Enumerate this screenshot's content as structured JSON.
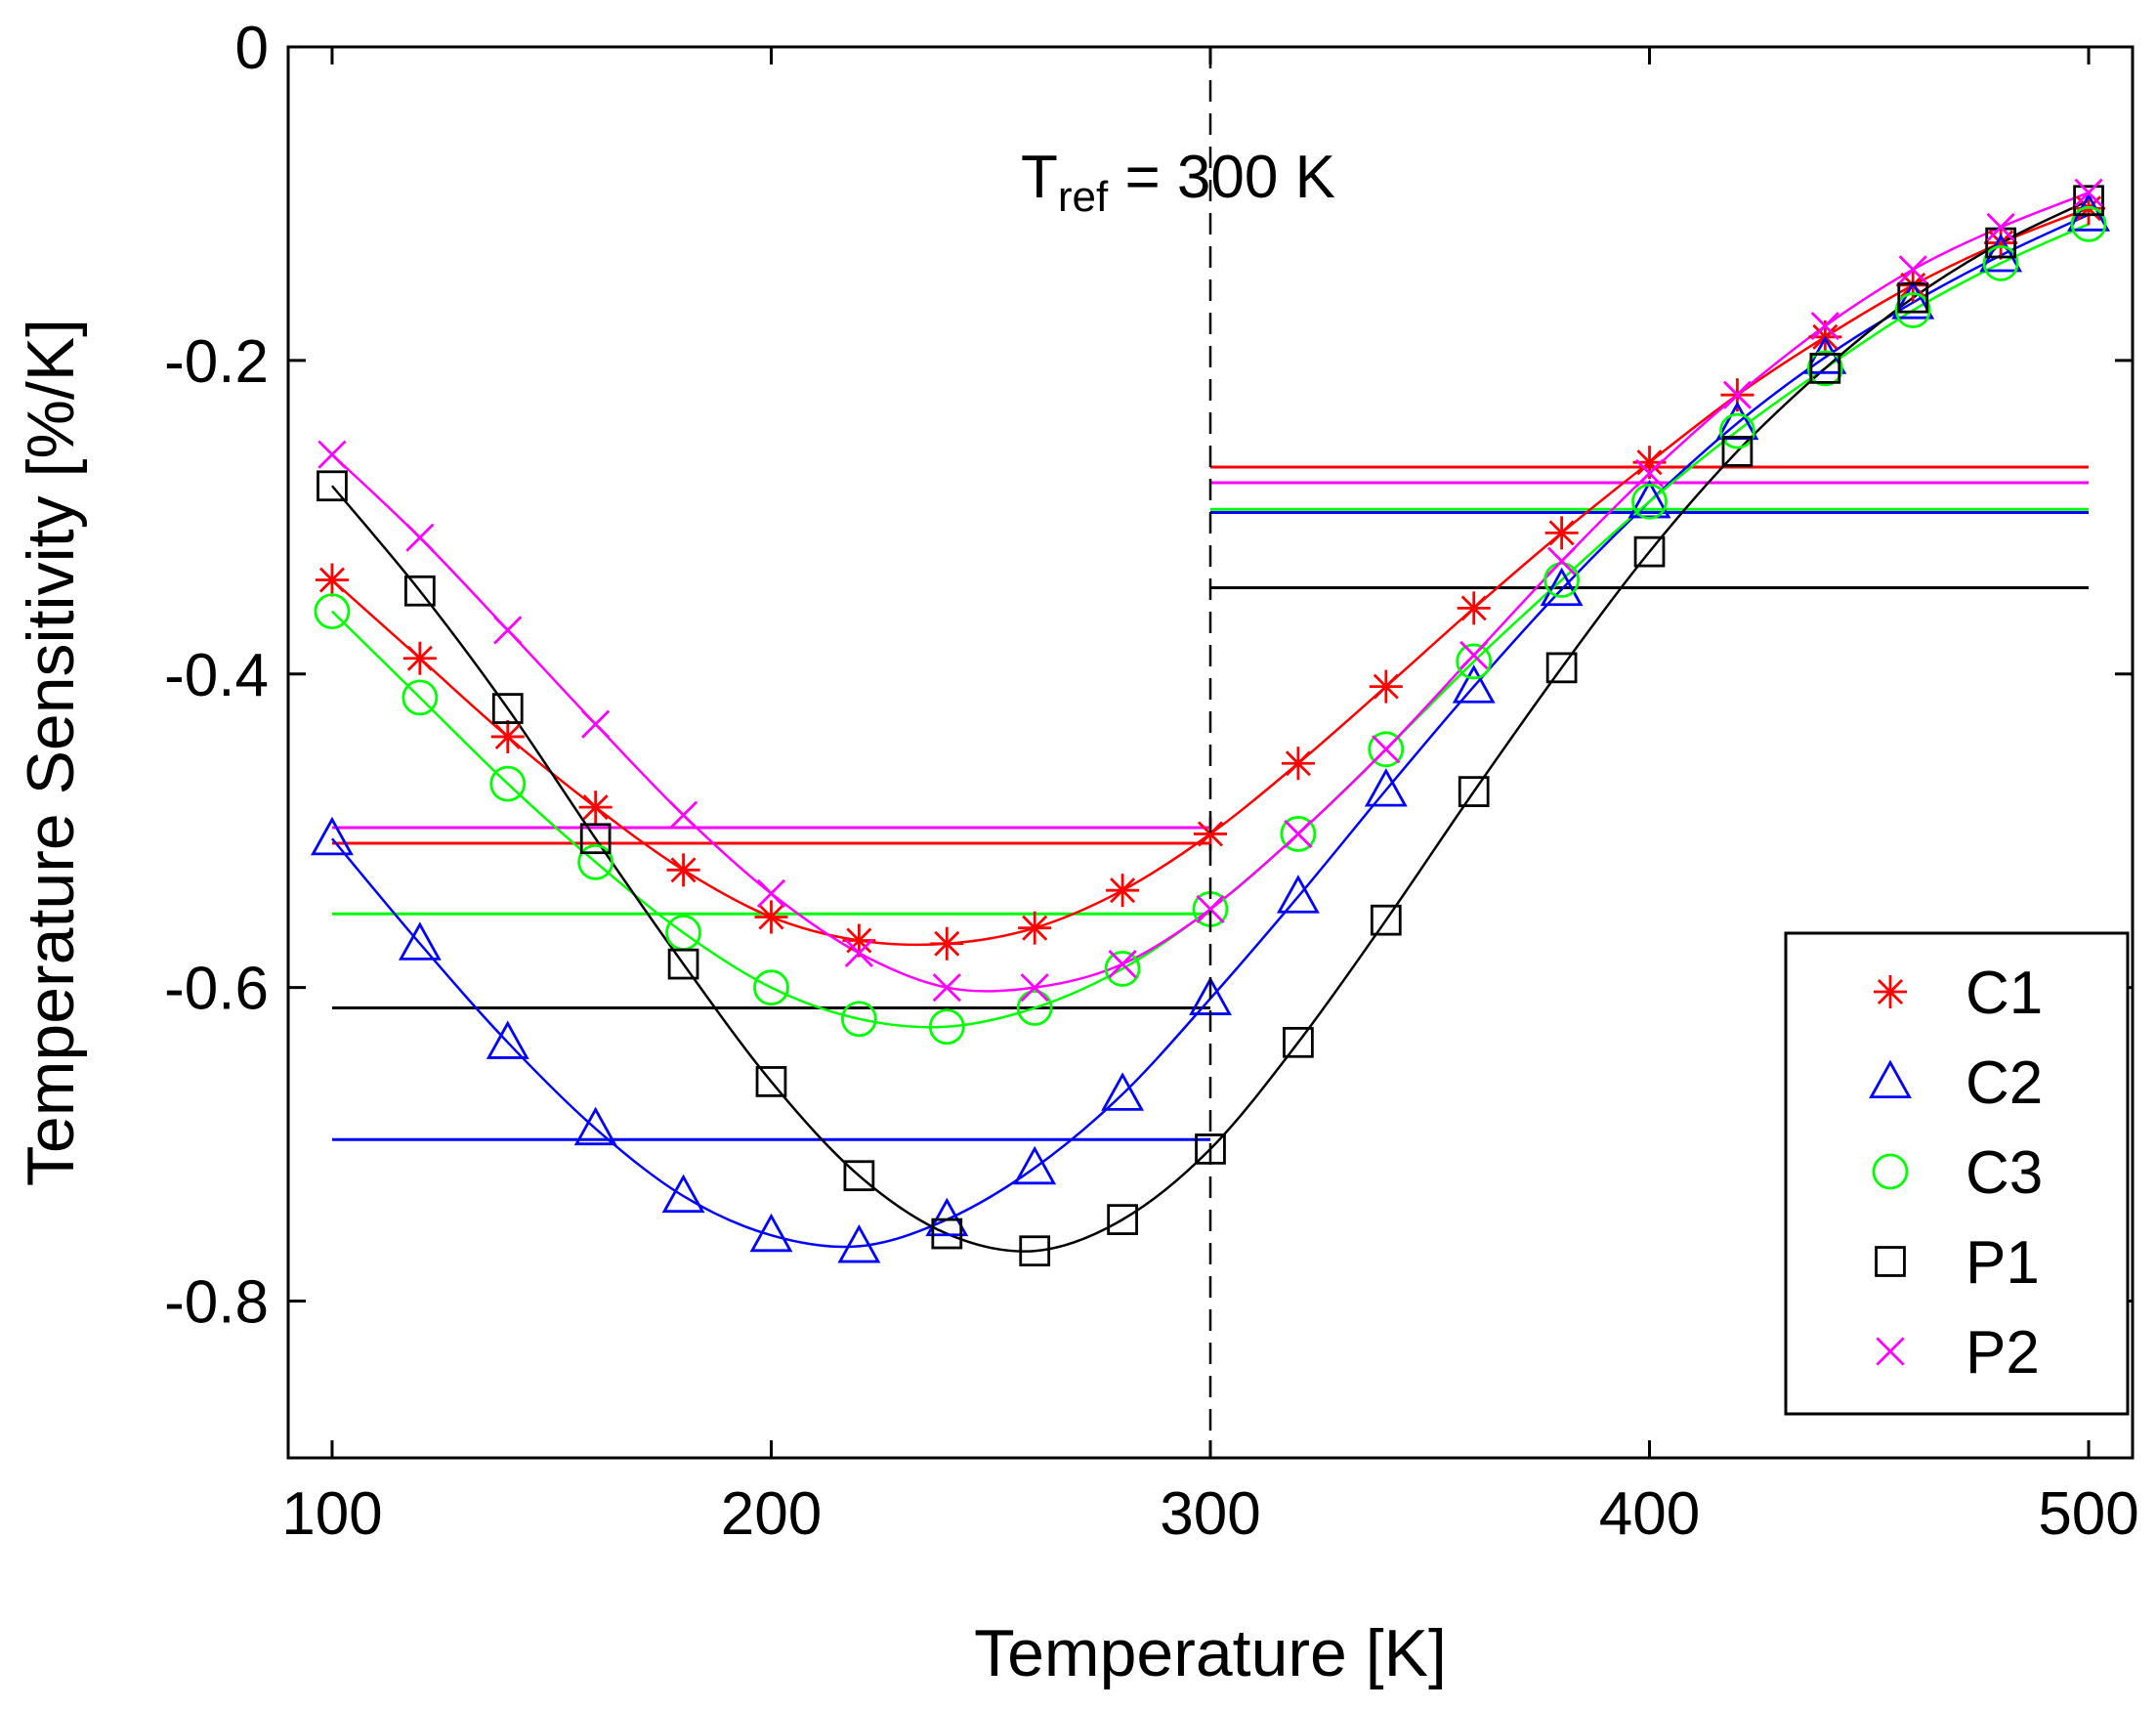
{
  "chart_data": {
    "type": "line",
    "xlabel": "Temperature [K]",
    "ylabel": "Temperature Sensitivity [%/K]",
    "xlim": [
      90,
      510
    ],
    "ylim": [
      -0.9,
      0
    ],
    "xticks": [
      100,
      200,
      300,
      400,
      500
    ],
    "yticks": [
      0,
      -0.2,
      -0.4,
      -0.6,
      -0.8
    ],
    "xtick_labels": [
      "100",
      "200",
      "300",
      "400",
      "500"
    ],
    "ytick_labels": [
      "0",
      "-0.2",
      "-0.4",
      "-0.6",
      "-0.8"
    ],
    "grid": false,
    "legend_position": "bottom-right",
    "x": [
      100,
      120,
      140,
      160,
      180,
      200,
      220,
      240,
      260,
      280,
      300,
      320,
      340,
      360,
      380,
      400,
      420,
      440,
      460,
      480,
      500
    ],
    "series": [
      {
        "name": "C1",
        "marker": "asterisk",
        "color": "#ff0000",
        "values": [
          -0.34,
          -0.39,
          -0.44,
          -0.485,
          -0.525,
          -0.555,
          -0.57,
          -0.572,
          -0.562,
          -0.538,
          -0.502,
          -0.457,
          -0.408,
          -0.358,
          -0.31,
          -0.265,
          -0.222,
          -0.185,
          -0.152,
          -0.125,
          -0.103
        ],
        "low_range_avg": -0.508,
        "high_range_avg": -0.268
      },
      {
        "name": "C2",
        "marker": "triangle",
        "color": "#0000ff",
        "values": [
          -0.505,
          -0.572,
          -0.635,
          -0.69,
          -0.733,
          -0.758,
          -0.765,
          -0.748,
          -0.715,
          -0.668,
          -0.607,
          -0.542,
          -0.474,
          -0.408,
          -0.346,
          -0.29,
          -0.24,
          -0.198,
          -0.163,
          -0.133,
          -0.107
        ],
        "low_range_avg": -0.697,
        "high_range_avg": -0.297
      },
      {
        "name": "C3",
        "marker": "circle",
        "color": "#00ff00",
        "values": [
          -0.36,
          -0.415,
          -0.47,
          -0.52,
          -0.565,
          -0.6,
          -0.62,
          -0.625,
          -0.613,
          -0.588,
          -0.55,
          -0.502,
          -0.448,
          -0.392,
          -0.34,
          -0.29,
          -0.245,
          -0.205,
          -0.168,
          -0.138,
          -0.113
        ],
        "low_range_avg": -0.553,
        "high_range_avg": -0.295
      },
      {
        "name": "P1",
        "marker": "square",
        "color": "#000000",
        "values": [
          -0.28,
          -0.347,
          -0.422,
          -0.505,
          -0.585,
          -0.66,
          -0.72,
          -0.757,
          -0.768,
          -0.748,
          -0.703,
          -0.635,
          -0.557,
          -0.475,
          -0.396,
          -0.322,
          -0.258,
          -0.205,
          -0.16,
          -0.125,
          -0.098
        ],
        "low_range_avg": -0.613,
        "high_range_avg": -0.345
      },
      {
        "name": "P2",
        "marker": "x",
        "color": "#ff00ff",
        "values": [
          -0.26,
          -0.313,
          -0.372,
          -0.432,
          -0.49,
          -0.54,
          -0.578,
          -0.6,
          -0.6,
          -0.585,
          -0.55,
          -0.502,
          -0.448,
          -0.388,
          -0.328,
          -0.272,
          -0.222,
          -0.178,
          -0.142,
          -0.115,
          -0.093
        ],
        "low_range_avg": -0.498,
        "high_range_avg": -0.278
      }
    ],
    "reference_line": {
      "x": 300,
      "style": "dashed"
    },
    "annotation": {
      "main": "T",
      "sub": "ref",
      "rest": " = 300 K"
    }
  }
}
